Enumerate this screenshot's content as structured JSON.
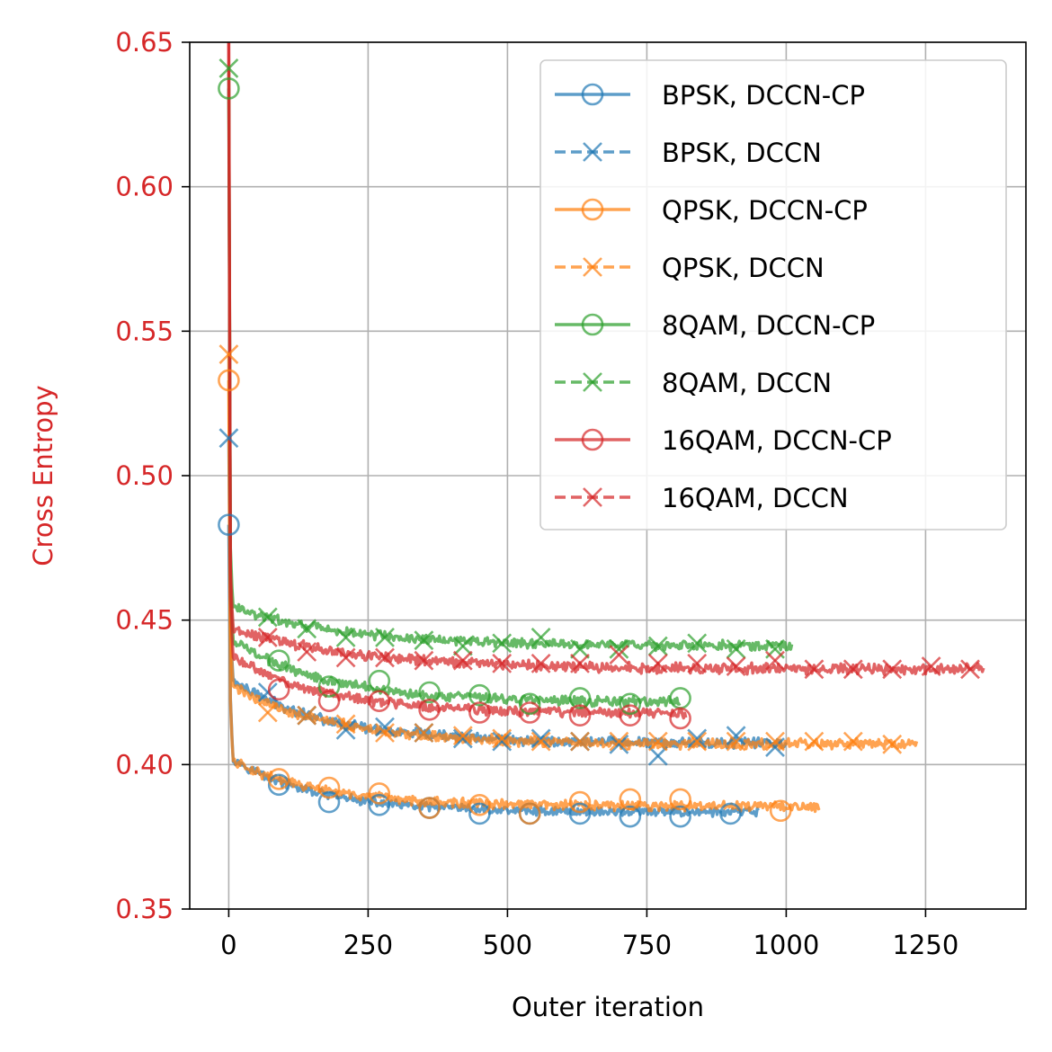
{
  "chart_data": {
    "type": "line",
    "title": "",
    "xlabel": "Outer iteration",
    "ylabel": "Cross Entropy",
    "xlim": [
      -70,
      1430
    ],
    "ylim": [
      0.35,
      0.65
    ],
    "xticks": [
      0,
      250,
      500,
      750,
      1000,
      1250
    ],
    "yticks": [
      0.35,
      0.4,
      0.45,
      0.5,
      0.55,
      0.6,
      0.65
    ],
    "xtick_labels": [
      "0",
      "250",
      "500",
      "750",
      "1000",
      "1250"
    ],
    "ytick_labels": [
      "0.35",
      "0.40",
      "0.45",
      "0.50",
      "0.55",
      "0.60",
      "0.65"
    ],
    "grid": true,
    "legend_position": "top-right",
    "colors": {
      "blue": "#1f77b4",
      "orange": "#ff7f0e",
      "green": "#2ca02c",
      "red": "#d62728",
      "ylabel": "#d62728"
    },
    "series": [
      {
        "name": "BPSK, DCCN-CP",
        "color": "#1f77b4",
        "style": "solid",
        "marker": "circle",
        "x_end": 950,
        "start": 0.483,
        "plateau": 0.403,
        "final": 0.3835,
        "tau": 150,
        "noise": 0.0012,
        "markers": [
          [
            0,
            0.483
          ],
          [
            90,
            0.393
          ],
          [
            180,
            0.387
          ],
          [
            270,
            0.386
          ],
          [
            360,
            0.385
          ],
          [
            450,
            0.383
          ],
          [
            540,
            0.383
          ],
          [
            630,
            0.383
          ],
          [
            720,
            0.382
          ],
          [
            810,
            0.382
          ],
          [
            900,
            0.383
          ]
        ]
      },
      {
        "name": "BPSK, DCCN",
        "color": "#1f77b4",
        "style": "dashed",
        "marker": "x",
        "x_end": 1000,
        "start": 0.513,
        "plateau": 0.43,
        "final": 0.4075,
        "tau": 170,
        "noise": 0.0014,
        "markers": [
          [
            0,
            0.513
          ],
          [
            70,
            0.425
          ],
          [
            140,
            0.417
          ],
          [
            210,
            0.412
          ],
          [
            280,
            0.413
          ],
          [
            350,
            0.411
          ],
          [
            420,
            0.409
          ],
          [
            490,
            0.408
          ],
          [
            560,
            0.409
          ],
          [
            630,
            0.408
          ],
          [
            700,
            0.407
          ],
          [
            770,
            0.403
          ],
          [
            840,
            0.409
          ],
          [
            910,
            0.41
          ],
          [
            980,
            0.406
          ]
        ]
      },
      {
        "name": "QPSK, DCCN-CP",
        "color": "#ff7f0e",
        "style": "solid",
        "marker": "circle",
        "x_end": 1060,
        "start": 0.533,
        "plateau": 0.402,
        "final": 0.3855,
        "tau": 160,
        "noise": 0.0013,
        "markers": [
          [
            0,
            0.533
          ],
          [
            90,
            0.395
          ],
          [
            180,
            0.392
          ],
          [
            270,
            0.39
          ],
          [
            360,
            0.385
          ],
          [
            450,
            0.386
          ],
          [
            540,
            0.383
          ],
          [
            630,
            0.387
          ],
          [
            720,
            0.388
          ],
          [
            810,
            0.388
          ],
          [
            990,
            0.384
          ]
        ]
      },
      {
        "name": "QPSK, DCCN",
        "color": "#ff7f0e",
        "style": "dashed",
        "marker": "x",
        "x_end": 1235,
        "start": 0.542,
        "plateau": 0.428,
        "final": 0.407,
        "tau": 180,
        "noise": 0.0014,
        "markers": [
          [
            0,
            0.542
          ],
          [
            70,
            0.418
          ],
          [
            140,
            0.417
          ],
          [
            210,
            0.414
          ],
          [
            280,
            0.411
          ],
          [
            350,
            0.411
          ],
          [
            420,
            0.41
          ],
          [
            490,
            0.409
          ],
          [
            560,
            0.408
          ],
          [
            630,
            0.408
          ],
          [
            700,
            0.408
          ],
          [
            770,
            0.408
          ],
          [
            840,
            0.408
          ],
          [
            910,
            0.408
          ],
          [
            980,
            0.408
          ],
          [
            1050,
            0.408
          ],
          [
            1120,
            0.408
          ],
          [
            1190,
            0.407
          ]
        ]
      },
      {
        "name": "8QAM, DCCN-CP",
        "color": "#2ca02c",
        "style": "solid",
        "marker": "circle",
        "x_end": 810,
        "start": 0.634,
        "plateau": 0.444,
        "final": 0.4215,
        "tau": 170,
        "noise": 0.0013,
        "markers": [
          [
            0,
            0.634
          ],
          [
            90,
            0.436
          ],
          [
            180,
            0.427
          ],
          [
            270,
            0.429
          ],
          [
            360,
            0.425
          ],
          [
            450,
            0.424
          ],
          [
            540,
            0.421
          ],
          [
            630,
            0.423
          ],
          [
            720,
            0.421
          ],
          [
            810,
            0.423
          ]
        ]
      },
      {
        "name": "8QAM, DCCN",
        "color": "#2ca02c",
        "style": "dashed",
        "marker": "x",
        "x_end": 1010,
        "start": 0.641,
        "plateau": 0.455,
        "final": 0.441,
        "tau": 200,
        "noise": 0.0013,
        "markers": [
          [
            0,
            0.641
          ],
          [
            70,
            0.451
          ],
          [
            140,
            0.447
          ],
          [
            210,
            0.444
          ],
          [
            280,
            0.444
          ],
          [
            350,
            0.443
          ],
          [
            420,
            0.441
          ],
          [
            490,
            0.442
          ],
          [
            560,
            0.444
          ],
          [
            630,
            0.44
          ],
          [
            700,
            0.44
          ],
          [
            770,
            0.441
          ],
          [
            840,
            0.442
          ],
          [
            910,
            0.44
          ],
          [
            980,
            0.44
          ]
        ]
      },
      {
        "name": "16QAM, DCCN-CP",
        "color": "#d62728",
        "style": "solid",
        "marker": "circle",
        "x_end": 820,
        "start": 0.65,
        "plateau": 0.438,
        "final": 0.4175,
        "tau": 170,
        "noise": 0.0013,
        "markers": [
          [
            90,
            0.426
          ],
          [
            180,
            0.422
          ],
          [
            270,
            0.422
          ],
          [
            360,
            0.419
          ],
          [
            450,
            0.418
          ],
          [
            540,
            0.418
          ],
          [
            630,
            0.417
          ],
          [
            720,
            0.417
          ],
          [
            810,
            0.416
          ]
        ]
      },
      {
        "name": "16QAM, DCCN",
        "color": "#d62728",
        "style": "dashed",
        "marker": "x",
        "x_end": 1355,
        "start": 0.65,
        "plateau": 0.448,
        "final": 0.433,
        "tau": 220,
        "noise": 0.0014,
        "markers": [
          [
            70,
            0.444
          ],
          [
            140,
            0.439
          ],
          [
            210,
            0.437
          ],
          [
            280,
            0.437
          ],
          [
            350,
            0.436
          ],
          [
            420,
            0.436
          ],
          [
            490,
            0.435
          ],
          [
            560,
            0.435
          ],
          [
            630,
            0.435
          ],
          [
            700,
            0.438
          ],
          [
            770,
            0.435
          ],
          [
            840,
            0.435
          ],
          [
            910,
            0.434
          ],
          [
            980,
            0.436
          ],
          [
            1050,
            0.433
          ],
          [
            1120,
            0.433
          ],
          [
            1190,
            0.433
          ],
          [
            1260,
            0.434
          ],
          [
            1330,
            0.433
          ]
        ]
      }
    ]
  }
}
